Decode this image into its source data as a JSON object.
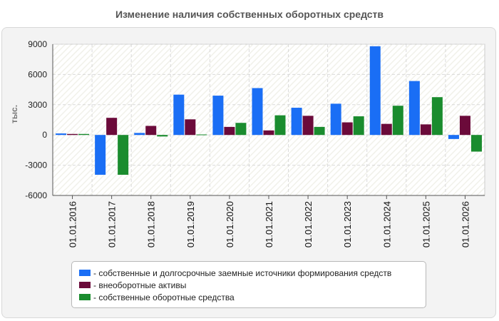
{
  "chart_data": {
    "type": "bar",
    "title": "Изменение наличия собственных оборотных средств",
    "ylabel": "тыс.",
    "xlabel": "",
    "ylim": [
      -6000,
      9000
    ],
    "yticks": [
      "9000",
      "6000",
      "3000",
      "0",
      "-3000",
      "-6000"
    ],
    "categories": [
      "01.01.2016",
      "01.01.2017",
      "01.01.2018",
      "01.01.2019",
      "01.01.2020",
      "01.01.2021",
      "01.01.2022",
      "01.01.2023",
      "01.01.2024",
      "01.01.2025",
      "01.01.2026"
    ],
    "series": [
      {
        "name": "- собственные и долгосрочные заемные источники формирования средств",
        "color": "#1a6ef5",
        "values": [
          150,
          -3950,
          200,
          4000,
          3900,
          4650,
          2700,
          3100,
          8800,
          5350,
          -400
        ]
      },
      {
        "name": "- внеоборотные активы",
        "color": "#6b0a3a",
        "values": [
          100,
          1700,
          900,
          1550,
          800,
          450,
          1900,
          1250,
          1100,
          1050,
          1900
        ]
      },
      {
        "name": "- собственные оборотные средства",
        "color": "#1a8c2e",
        "values": [
          100,
          -3950,
          -150,
          50,
          1200,
          1950,
          800,
          1850,
          2900,
          3750,
          -1650
        ]
      }
    ],
    "grid": true,
    "legend_position": "bottom"
  }
}
